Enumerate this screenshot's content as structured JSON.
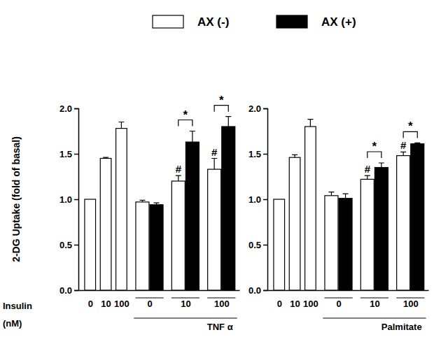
{
  "chart_data": [
    {
      "type": "bar",
      "categories": [
        "0",
        "10",
        "100",
        "0",
        "10",
        "100"
      ],
      "category_groups": [
        null,
        null,
        null,
        "TNF α",
        "TNF α",
        "TNF α"
      ],
      "x_label": "Insulin (nM)",
      "y_label": "2-DG Uptake (fold of basal)",
      "ylim": [
        0,
        2
      ],
      "yticks": [
        {
          "value": 0,
          "label": "0.0"
        },
        {
          "value": 0.5,
          "label": "0.5"
        },
        {
          "value": 1,
          "label": "1.0"
        },
        {
          "value": 1.5,
          "label": "1.5"
        },
        {
          "value": 2,
          "label": "2.0"
        }
      ],
      "legend": "top",
      "series": [
        {
          "name": "AX (-)",
          "color": "#ffffff",
          "values": [
            1.0,
            1.45,
            1.78,
            0.97,
            1.2,
            1.33
          ],
          "errors": [
            null,
            0.01,
            0.07,
            0.02,
            0.06,
            0.12
          ],
          "significance": [
            null,
            null,
            null,
            null,
            "#",
            "#"
          ]
        },
        {
          "name": "AX (+)",
          "color": "#000000",
          "values": [
            null,
            null,
            null,
            0.94,
            1.63,
            1.8
          ],
          "errors": [
            null,
            null,
            null,
            0.02,
            0.12,
            0.11
          ]
        }
      ],
      "comparisons": [
        null,
        null,
        null,
        null,
        "*",
        "*"
      ]
    },
    {
      "type": "bar",
      "categories": [
        "0",
        "10",
        "100",
        "0",
        "10",
        "100"
      ],
      "category_groups": [
        null,
        null,
        null,
        "Palmitate",
        "Palmitate",
        "Palmitate"
      ],
      "ylim": [
        0,
        2
      ],
      "yticks": [
        {
          "value": 0,
          "label": "0.0"
        },
        {
          "value": 0.5,
          "label": "0.5"
        },
        {
          "value": 1,
          "label": "1.0"
        },
        {
          "value": 1.5,
          "label": "1.5"
        },
        {
          "value": 2,
          "label": "2.0"
        }
      ],
      "series": [
        {
          "color": "#ffffff",
          "values": [
            1.0,
            1.46,
            1.8,
            1.04,
            1.22,
            1.48
          ],
          "errors": [
            null,
            0.03,
            0.08,
            0.04,
            0.04,
            0.04
          ],
          "significance": [
            null,
            null,
            null,
            null,
            "#",
            "#"
          ]
        },
        {
          "color": "#000000",
          "values": [
            null,
            null,
            null,
            1.01,
            1.35,
            1.61
          ],
          "errors": [
            null,
            null,
            null,
            0.05,
            0.05,
            0.01
          ]
        }
      ],
      "comparisons": [
        null,
        null,
        null,
        null,
        "*",
        "*"
      ]
    }
  ]
}
